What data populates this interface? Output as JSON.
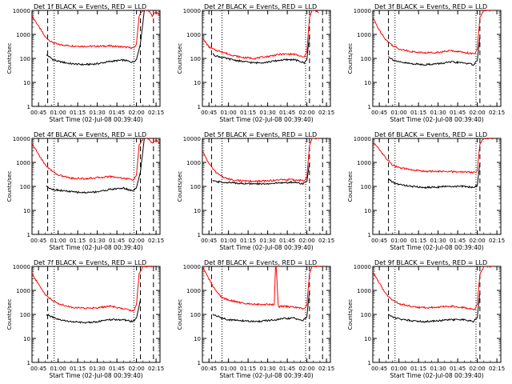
{
  "chart_data": [
    {
      "type": "line",
      "title": "Det 1f BLACK = Events, RED = LLD",
      "xlabel": "Start Time (02-Jul-08 00:39:40)",
      "ylabel": "Counts/sec",
      "yscale": "log",
      "ylim": [
        1,
        10000
      ],
      "xlim": [
        "00:40",
        "02:18"
      ],
      "x_ticks": [
        "00:45",
        "01:00",
        "01:15",
        "01:30",
        "01:45",
        "02:00",
        "02:15"
      ],
      "y_ticks": [
        "1",
        "10",
        "100",
        "1000",
        "10000"
      ],
      "series": [
        {
          "color": "#ff0000",
          "x": [
            "00:40",
            "00:45",
            "00:50",
            "00:55",
            "01:00",
            "01:10",
            "01:20",
            "01:30",
            "01:40",
            "01:50",
            "01:58",
            "02:00",
            "02:02",
            "02:05",
            "02:09",
            "02:12",
            "02:15",
            "02:18"
          ],
          "y": [
            6000,
            2200,
            800,
            480,
            380,
            330,
            320,
            320,
            330,
            300,
            270,
            400,
            6000,
            10000,
            10000,
            6000,
            9000,
            6000
          ]
        },
        {
          "color": "#000000",
          "x": [
            "00:51",
            "00:53",
            "00:56",
            "01:00",
            "01:10",
            "01:20",
            "01:30",
            "01:40",
            "01:50",
            "01:57",
            "02:00",
            "02:03",
            "02:06"
          ],
          "y": [
            140,
            120,
            90,
            75,
            60,
            55,
            60,
            75,
            85,
            70,
            90,
            400,
            10000
          ]
        }
      ],
      "markers": {
        "dashed": [
          "00:52",
          "02:03",
          "02:13"
        ],
        "dotted": [
          "00:57",
          "01:58"
        ]
      }
    },
    {
      "type": "line",
      "title": "Det 2f BLACK = Events, RED = LLD",
      "xlabel": "Start Time (02-Jul-08 00:39:40)",
      "ylabel": "Counts/sec",
      "yscale": "log",
      "ylim": [
        1,
        10000
      ],
      "xlim": [
        "00:40",
        "02:18"
      ],
      "x_ticks": [
        "00:45",
        "01:00",
        "01:15",
        "01:30",
        "01:45",
        "02:00",
        "02:15"
      ],
      "y_ticks": [
        "1",
        "10",
        "100",
        "1000",
        "10000"
      ],
      "series": [
        {
          "color": "#ff0000",
          "x": [
            "00:40",
            "00:45",
            "00:50",
            "00:55",
            "01:00",
            "01:10",
            "01:20",
            "01:30",
            "01:40",
            "01:50",
            "01:58",
            "02:00",
            "02:02",
            "02:04",
            "02:06",
            "02:09"
          ],
          "y": [
            700,
            300,
            220,
            190,
            150,
            110,
            100,
            120,
            150,
            150,
            110,
            200,
            5000,
            10000,
            10000,
            8000
          ]
        },
        {
          "color": "#000000",
          "x": [
            "00:48",
            "00:50",
            "00:55",
            "01:00",
            "01:10",
            "01:20",
            "01:30",
            "01:40",
            "01:50",
            "01:58",
            "02:00",
            "02:02"
          ],
          "y": [
            150,
            130,
            110,
            95,
            75,
            65,
            70,
            85,
            90,
            65,
            90,
            1000
          ]
        }
      ],
      "markers": {
        "dashed": [
          "00:47",
          "02:02",
          "02:12"
        ],
        "dotted": [
          "00:55",
          "01:59"
        ]
      }
    },
    {
      "type": "line",
      "title": "Det 3f BLACK = Events, RED = LLD",
      "xlabel": "Start Time (02-Jul-08 00:39:40)",
      "ylabel": "Counts/sec",
      "yscale": "log",
      "ylim": [
        1,
        10000
      ],
      "xlim": [
        "00:40",
        "02:18"
      ],
      "x_ticks": [
        "00:45",
        "01:00",
        "01:15",
        "01:30",
        "01:45",
        "02:00",
        "02:15"
      ],
      "y_ticks": [
        "1",
        "10",
        "100",
        "1000",
        "10000"
      ],
      "series": [
        {
          "color": "#ff0000",
          "x": [
            "00:40",
            "00:45",
            "00:50",
            "00:55",
            "01:00",
            "01:10",
            "01:20",
            "01:30",
            "01:40",
            "01:50",
            "01:58",
            "02:00",
            "02:02",
            "02:05",
            "02:08",
            "02:12"
          ],
          "y": [
            5000,
            1500,
            600,
            350,
            250,
            190,
            170,
            180,
            210,
            180,
            150,
            250,
            5000,
            10000,
            10000,
            10000
          ]
        },
        {
          "color": "#000000",
          "x": [
            "00:52",
            "00:55",
            "01:00",
            "01:10",
            "01:20",
            "01:30",
            "01:40",
            "01:50",
            "01:57",
            "02:00",
            "02:02"
          ],
          "y": [
            120,
            90,
            70,
            60,
            55,
            60,
            70,
            65,
            55,
            80,
            800
          ]
        }
      ],
      "markers": {
        "dashed": [
          "00:52",
          "02:02"
        ],
        "dotted": [
          "00:57",
          "01:59"
        ]
      }
    },
    {
      "type": "line",
      "title": "Det 4f BLACK = Events, RED = LLD",
      "xlabel": "Start Time (02-Jul-08 00:39:40)",
      "ylabel": "Counts/sec",
      "yscale": "log",
      "ylim": [
        1,
        10000
      ],
      "xlim": [
        "00:40",
        "02:18"
      ],
      "x_ticks": [
        "00:45",
        "01:00",
        "01:15",
        "01:30",
        "01:45",
        "02:00",
        "02:15"
      ],
      "y_ticks": [
        "1",
        "10",
        "100",
        "1000",
        "10000"
      ],
      "series": [
        {
          "color": "#ff0000",
          "x": [
            "00:40",
            "00:45",
            "00:50",
            "00:55",
            "01:00",
            "01:10",
            "01:20",
            "01:30",
            "01:40",
            "01:50",
            "01:58",
            "02:00",
            "02:02",
            "02:05",
            "02:09",
            "02:12",
            "02:15",
            "02:18"
          ],
          "y": [
            6000,
            2200,
            800,
            450,
            300,
            220,
            210,
            230,
            260,
            220,
            190,
            300,
            5000,
            10000,
            10000,
            6000,
            9000,
            6000
          ]
        },
        {
          "color": "#000000",
          "x": [
            "00:51",
            "00:53",
            "00:56",
            "01:00",
            "01:10",
            "01:20",
            "01:30",
            "01:40",
            "01:50",
            "01:57",
            "02:00",
            "02:03",
            "02:06"
          ],
          "y": [
            100,
            90,
            75,
            70,
            60,
            55,
            60,
            75,
            85,
            65,
            90,
            400,
            10000
          ]
        }
      ],
      "markers": {
        "dashed": [
          "00:52",
          "02:03",
          "02:13"
        ],
        "dotted": [
          "00:57",
          "01:58"
        ]
      }
    },
    {
      "type": "line",
      "title": "Det 5f BLACK = Events, RED = LLD",
      "xlabel": "Start Time (02-Jul-08 00:39:40)",
      "ylabel": "Counts/sec",
      "yscale": "log",
      "ylim": [
        1,
        10000
      ],
      "xlim": [
        "00:40",
        "02:18"
      ],
      "x_ticks": [
        "00:45",
        "01:00",
        "01:15",
        "01:30",
        "01:45",
        "02:00",
        "02:15"
      ],
      "y_ticks": [
        "1",
        "10",
        "100",
        "1000",
        "10000"
      ],
      "series": [
        {
          "color": "#ff0000",
          "x": [
            "00:40",
            "00:45",
            "00:50",
            "00:55",
            "01:00",
            "01:10",
            "01:20",
            "01:30",
            "01:40",
            "01:50",
            "01:58",
            "02:00",
            "02:02",
            "02:04",
            "02:07",
            "02:10"
          ],
          "y": [
            3000,
            900,
            400,
            260,
            200,
            170,
            160,
            170,
            190,
            190,
            170,
            250,
            5000,
            10000,
            10000,
            10000
          ]
        },
        {
          "color": "#000000",
          "x": [
            "00:48",
            "00:50",
            "00:55",
            "01:00",
            "01:10",
            "01:20",
            "01:30",
            "01:40",
            "01:50",
            "01:57",
            "02:00",
            "02:02"
          ],
          "y": [
            170,
            160,
            150,
            145,
            135,
            125,
            130,
            140,
            150,
            130,
            160,
            1000
          ]
        }
      ],
      "markers": {
        "dashed": [
          "00:47",
          "02:02",
          "02:12"
        ],
        "dotted": [
          "00:55",
          "01:59"
        ]
      }
    },
    {
      "type": "line",
      "title": "Det 6f BLACK = Events, RED = LLD",
      "xlabel": "Start Time (02-Jul-08 00:39:40)",
      "ylabel": "Counts/sec",
      "yscale": "log",
      "ylim": [
        1,
        10000
      ],
      "xlim": [
        "00:40",
        "02:18"
      ],
      "x_ticks": [
        "00:45",
        "01:00",
        "01:15",
        "01:30",
        "01:45",
        "02:00",
        "02:15"
      ],
      "y_ticks": [
        "1",
        "10",
        "100",
        "1000",
        "10000"
      ],
      "series": [
        {
          "color": "#ff0000",
          "x": [
            "00:40",
            "00:45",
            "00:50",
            "00:55",
            "01:00",
            "01:10",
            "01:20",
            "01:30",
            "01:40",
            "01:50",
            "01:58",
            "02:00",
            "02:02",
            "02:05",
            "02:08",
            "02:12"
          ],
          "y": [
            7000,
            3500,
            1500,
            800,
            600,
            480,
            430,
            420,
            410,
            400,
            380,
            450,
            6000,
            10000,
            10000,
            10000
          ]
        },
        {
          "color": "#000000",
          "x": [
            "00:52",
            "00:55",
            "01:00",
            "01:10",
            "01:20",
            "01:30",
            "01:40",
            "01:50",
            "01:57",
            "02:00",
            "02:02"
          ],
          "y": [
            200,
            150,
            120,
            100,
            90,
            95,
            100,
            100,
            90,
            110,
            1000
          ]
        }
      ],
      "markers": {
        "dashed": [
          "00:52",
          "02:02"
        ],
        "dotted": [
          "00:57",
          "01:59"
        ]
      }
    },
    {
      "type": "line",
      "title": "Det 7f BLACK = Events, RED = LLD",
      "xlabel": "Start Time (02-Jul-08 00:39:40)",
      "ylabel": "Counts/sec",
      "yscale": "log",
      "ylim": [
        1,
        10000
      ],
      "xlim": [
        "00:40",
        "02:18"
      ],
      "x_ticks": [
        "00:45",
        "01:00",
        "01:15",
        "01:30",
        "01:45",
        "02:00",
        "02:15"
      ],
      "y_ticks": [
        "1",
        "10",
        "100",
        "1000",
        "10000"
      ],
      "series": [
        {
          "color": "#ff0000",
          "x": [
            "00:40",
            "00:45",
            "00:50",
            "00:55",
            "01:00",
            "01:10",
            "01:20",
            "01:30",
            "01:40",
            "01:50",
            "01:58",
            "02:00",
            "02:02",
            "02:05",
            "02:09",
            "02:13"
          ],
          "y": [
            5000,
            1800,
            700,
            400,
            280,
            200,
            180,
            190,
            220,
            170,
            140,
            250,
            5000,
            10000,
            10000,
            10000
          ]
        },
        {
          "color": "#000000",
          "x": [
            "00:51",
            "00:53",
            "00:56",
            "01:00",
            "01:10",
            "01:20",
            "01:30",
            "01:40",
            "01:50",
            "01:57",
            "02:00",
            "02:03"
          ],
          "y": [
            100,
            90,
            75,
            60,
            50,
            45,
            50,
            60,
            60,
            50,
            70,
            400
          ]
        }
      ],
      "markers": {
        "dashed": [
          "00:52",
          "02:03",
          "02:13"
        ],
        "dotted": [
          "00:57",
          "01:58"
        ]
      }
    },
    {
      "type": "line",
      "title": "Det 8f BLACK = Events, RED = LLD",
      "xlabel": "Start Time (02-Jul-08 00:39:40)",
      "ylabel": "Counts/sec",
      "yscale": "log",
      "ylim": [
        1,
        10000
      ],
      "xlim": [
        "00:40",
        "02:18"
      ],
      "x_ticks": [
        "00:45",
        "01:00",
        "01:15",
        "01:30",
        "01:45",
        "02:00",
        "02:15"
      ],
      "y_ticks": [
        "1",
        "10",
        "100",
        "1000",
        "10000"
      ],
      "series": [
        {
          "color": "#ff0000",
          "x": [
            "00:40",
            "00:45",
            "00:50",
            "00:55",
            "01:00",
            "01:10",
            "01:20",
            "01:30",
            "01:35",
            "01:36",
            "01:36.5",
            "01:38",
            "01:38.5",
            "01:40",
            "01:50",
            "01:58",
            "02:00",
            "02:02",
            "02:04",
            "02:08",
            "02:12"
          ],
          "y": [
            10000,
            3000,
            1000,
            500,
            400,
            300,
            270,
            260,
            260,
            10000,
            10000,
            260,
            200,
            220,
            200,
            170,
            250,
            5000,
            10000,
            10000,
            10000
          ]
        },
        {
          "color": "#000000",
          "x": [
            "00:48",
            "00:50",
            "00:55",
            "01:00",
            "01:10",
            "01:20",
            "01:30",
            "01:38",
            "01:40",
            "01:50",
            "01:57",
            "02:00",
            "02:02"
          ],
          "y": [
            100,
            90,
            70,
            60,
            55,
            50,
            55,
            60,
            65,
            70,
            55,
            80,
            1000
          ]
        }
      ],
      "markers": {
        "dashed": [
          "00:47",
          "02:02",
          "02:12"
        ],
        "dotted": [
          "00:55",
          "01:59"
        ]
      }
    },
    {
      "type": "line",
      "title": "Det 9f BLACK = Events, RED = LLD",
      "xlabel": "Start Time (02-Jul-08 00:39:40)",
      "ylabel": "Counts/sec",
      "yscale": "log",
      "ylim": [
        1,
        10000
      ],
      "xlim": [
        "00:40",
        "02:18"
      ],
      "x_ticks": [
        "00:45",
        "01:00",
        "01:15",
        "01:30",
        "01:45",
        "02:00",
        "02:15"
      ],
      "y_ticks": [
        "1",
        "10",
        "100",
        "1000",
        "10000"
      ],
      "series": [
        {
          "color": "#ff0000",
          "x": [
            "00:40",
            "00:45",
            "00:50",
            "00:55",
            "01:00",
            "01:10",
            "01:20",
            "01:30",
            "01:40",
            "01:50",
            "01:58",
            "02:00",
            "02:02",
            "02:05",
            "02:08",
            "02:12"
          ],
          "y": [
            6000,
            2000,
            700,
            400,
            280,
            210,
            190,
            200,
            220,
            190,
            160,
            260,
            5000,
            10000,
            10000,
            10000
          ]
        },
        {
          "color": "#000000",
          "x": [
            "00:52",
            "00:55",
            "01:00",
            "01:10",
            "01:20",
            "01:30",
            "01:40",
            "01:50",
            "01:57",
            "02:00",
            "02:02"
          ],
          "y": [
            100,
            80,
            65,
            55,
            50,
            55,
            60,
            60,
            50,
            75,
            800
          ]
        }
      ],
      "markers": {
        "dashed": [
          "00:52",
          "02:02"
        ],
        "dotted": [
          "00:57",
          "01:59"
        ]
      }
    }
  ]
}
